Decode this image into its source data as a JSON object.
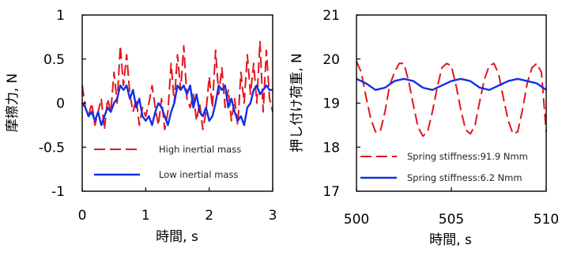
{
  "colors": {
    "high": "#e4151c",
    "low": "#1130e6"
  },
  "chart_data": [
    {
      "type": "line",
      "xlabel": "時間, s",
      "ylabel": "摩擦力, N",
      "xlim": [
        0,
        3
      ],
      "ylim": [
        -1,
        1
      ],
      "xticks": [
        "0",
        "1",
        "2",
        "3"
      ],
      "yticks": [
        "-1",
        "-0.5",
        "0",
        "0.5",
        "1"
      ],
      "grid": false,
      "legend_position": "bottom-left",
      "series": [
        {
          "name": "High inertial mass",
          "style": "dashed",
          "color": "#e4151c",
          "x": [
            0.0,
            0.05,
            0.1,
            0.15,
            0.2,
            0.25,
            0.3,
            0.35,
            0.4,
            0.45,
            0.5,
            0.55,
            0.6,
            0.65,
            0.7,
            0.75,
            0.8,
            0.85,
            0.9,
            0.95,
            1.0,
            1.05,
            1.1,
            1.15,
            1.2,
            1.25,
            1.3,
            1.35,
            1.4,
            1.45,
            1.5,
            1.55,
            1.6,
            1.65,
            1.7,
            1.75,
            1.8,
            1.85,
            1.9,
            1.95,
            2.0,
            2.05,
            2.1,
            2.15,
            2.2,
            2.25,
            2.3,
            2.35,
            2.4,
            2.45,
            2.5,
            2.55,
            2.6,
            2.65,
            2.7,
            2.75,
            2.8,
            2.85,
            2.9,
            2.95,
            3.0
          ],
          "y": [
            0.2,
            -0.05,
            -0.15,
            0.0,
            -0.25,
            -0.1,
            0.05,
            -0.3,
            0.05,
            -0.1,
            0.35,
            0.0,
            0.65,
            0.2,
            0.55,
            0.1,
            -0.1,
            0.05,
            -0.25,
            -0.05,
            -0.15,
            0.0,
            0.2,
            -0.05,
            -0.25,
            0.05,
            -0.3,
            -0.1,
            0.45,
            0.0,
            0.55,
            0.15,
            0.65,
            0.05,
            -0.05,
            0.1,
            -0.2,
            0.0,
            -0.3,
            -0.1,
            0.3,
            -0.05,
            0.6,
            0.1,
            0.4,
            -0.05,
            0.15,
            -0.2,
            0.05,
            -0.25,
            0.35,
            0.0,
            0.55,
            0.1,
            0.45,
            0.0,
            0.7,
            -0.1,
            0.6,
            0.05,
            -0.1
          ]
        },
        {
          "name": "Low inertial mass",
          "style": "solid",
          "color": "#1130e6",
          "x": [
            0.0,
            0.05,
            0.1,
            0.15,
            0.2,
            0.25,
            0.3,
            0.35,
            0.4,
            0.45,
            0.5,
            0.55,
            0.6,
            0.65,
            0.7,
            0.75,
            0.8,
            0.85,
            0.9,
            0.95,
            1.0,
            1.05,
            1.1,
            1.15,
            1.2,
            1.25,
            1.3,
            1.35,
            1.4,
            1.45,
            1.5,
            1.55,
            1.6,
            1.65,
            1.7,
            1.75,
            1.8,
            1.85,
            1.9,
            1.95,
            2.0,
            2.05,
            2.1,
            2.15,
            2.2,
            2.25,
            2.3,
            2.35,
            2.4,
            2.45,
            2.5,
            2.55,
            2.6,
            2.65,
            2.7,
            2.75,
            2.8,
            2.85,
            2.9,
            2.95,
            3.0
          ],
          "y": [
            0.0,
            -0.05,
            -0.15,
            -0.1,
            -0.2,
            -0.1,
            -0.25,
            -0.15,
            -0.05,
            -0.1,
            0.0,
            0.05,
            0.2,
            0.15,
            0.2,
            0.05,
            0.15,
            -0.05,
            0.05,
            -0.15,
            -0.2,
            -0.15,
            -0.25,
            -0.1,
            0.0,
            -0.05,
            -0.15,
            -0.25,
            -0.1,
            0.0,
            0.2,
            0.15,
            0.2,
            0.1,
            0.2,
            -0.05,
            0.1,
            -0.1,
            -0.15,
            -0.05,
            -0.2,
            -0.15,
            0.0,
            0.2,
            0.15,
            0.2,
            -0.05,
            0.05,
            -0.1,
            -0.2,
            -0.15,
            -0.25,
            -0.05,
            0.0,
            0.15,
            0.2,
            0.1,
            0.15,
            0.2,
            0.15,
            0.15
          ]
        }
      ]
    },
    {
      "type": "line",
      "xlabel": "時間, s",
      "ylabel": "押し付け荷重, N",
      "xlim": [
        500,
        510
      ],
      "ylim": [
        17,
        21
      ],
      "xticks": [
        "500",
        "505",
        "510"
      ],
      "yticks": [
        "17",
        "18",
        "19",
        "20",
        "21"
      ],
      "grid": false,
      "legend_position": "bottom",
      "series": [
        {
          "name": "Spring stiffness:91.9 Nmm",
          "style": "dashed",
          "color": "#e4151c",
          "x": [
            500.0,
            500.25,
            500.5,
            500.75,
            501.0,
            501.25,
            501.5,
            501.75,
            502.0,
            502.25,
            502.5,
            502.75,
            503.0,
            503.25,
            503.5,
            503.75,
            504.0,
            504.25,
            504.5,
            504.75,
            505.0,
            505.25,
            505.5,
            505.75,
            506.0,
            506.25,
            506.5,
            506.75,
            507.0,
            507.25,
            507.5,
            507.75,
            508.0,
            508.25,
            508.5,
            508.75,
            509.0,
            509.25,
            509.5,
            509.75,
            510.0
          ],
          "y": [
            19.95,
            19.7,
            19.15,
            18.65,
            18.35,
            18.35,
            18.8,
            19.4,
            19.7,
            19.9,
            19.9,
            19.5,
            18.95,
            18.45,
            18.25,
            18.35,
            18.8,
            19.35,
            19.8,
            19.9,
            19.85,
            19.4,
            18.85,
            18.4,
            18.3,
            18.5,
            19.05,
            19.55,
            19.85,
            19.9,
            19.65,
            19.1,
            18.6,
            18.3,
            18.35,
            18.85,
            19.45,
            19.8,
            19.9,
            19.7,
            18.35
          ]
        },
        {
          "name": "Spring stiffness:6.2 Nmm",
          "style": "solid",
          "color": "#1130e6",
          "x": [
            500.0,
            500.5,
            501.0,
            501.5,
            502.0,
            502.5,
            503.0,
            503.5,
            504.0,
            504.5,
            505.0,
            505.5,
            506.0,
            506.5,
            507.0,
            507.5,
            508.0,
            508.5,
            509.0,
            509.5,
            510.0
          ],
          "y": [
            19.55,
            19.45,
            19.3,
            19.35,
            19.5,
            19.55,
            19.5,
            19.35,
            19.3,
            19.4,
            19.5,
            19.55,
            19.5,
            19.35,
            19.3,
            19.4,
            19.5,
            19.55,
            19.5,
            19.45,
            19.3
          ]
        }
      ]
    }
  ]
}
